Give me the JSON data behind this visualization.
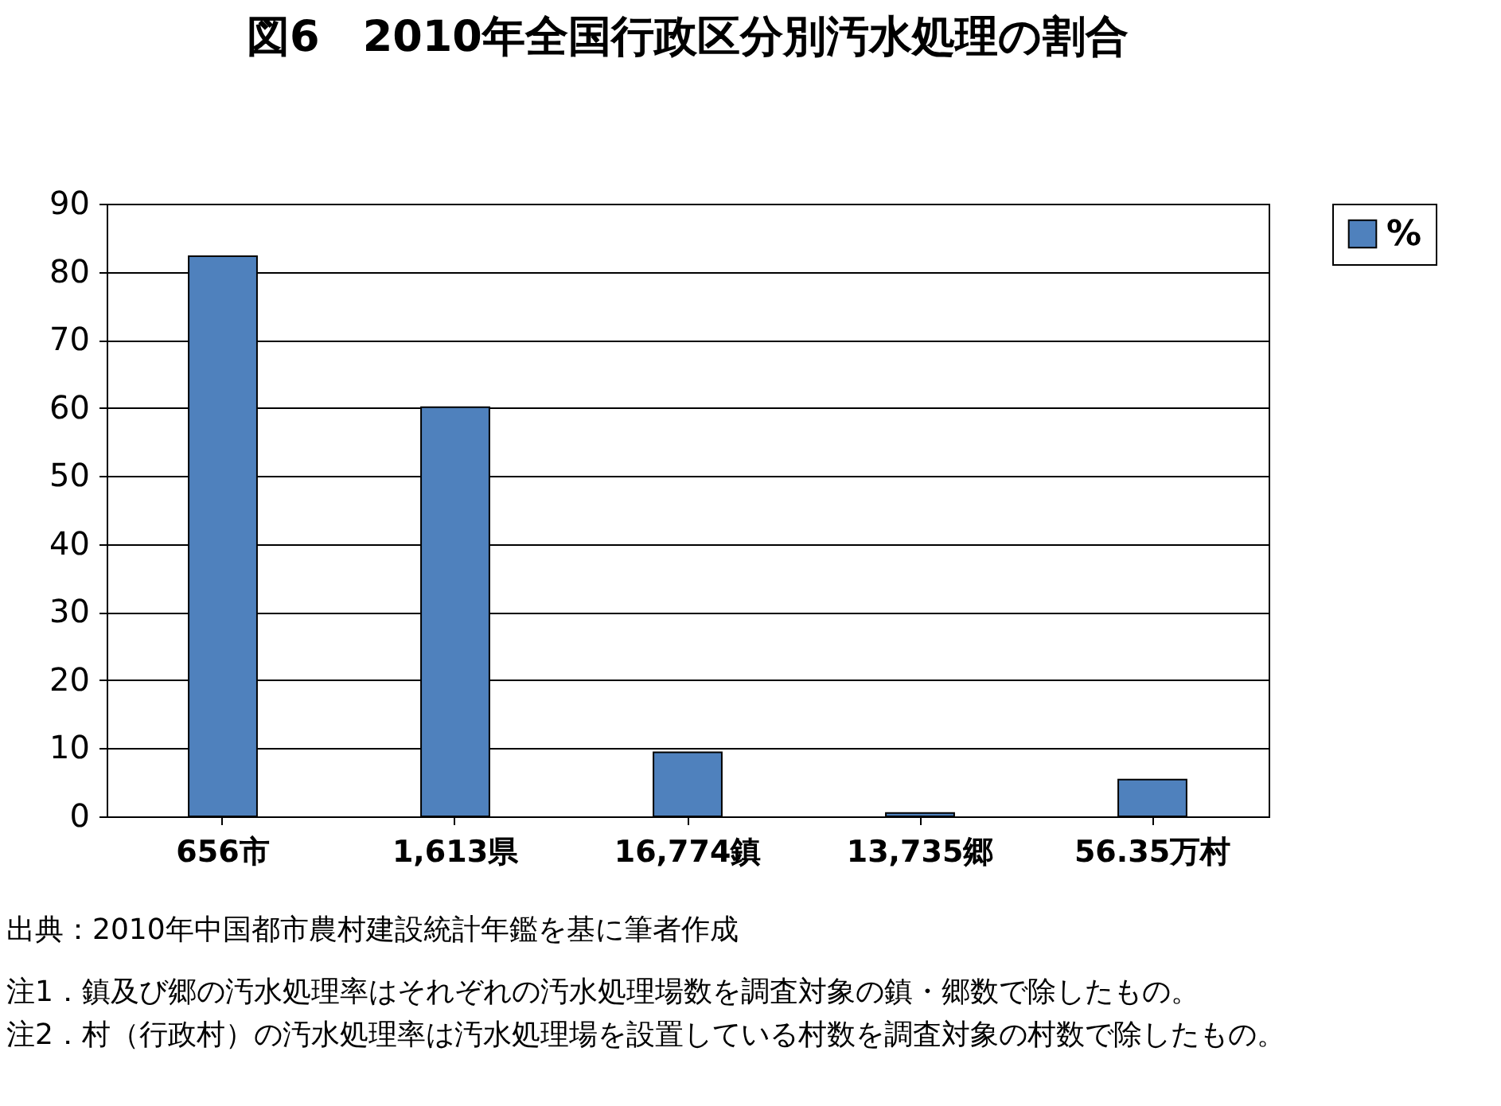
{
  "chart_data": {
    "type": "bar",
    "title": "図6　2010年全国行政区分別汚水処理の割合",
    "categories": [
      "656市",
      "1,613県",
      "16,774鎮",
      "13,735郷",
      "56.35万村"
    ],
    "series": [
      {
        "name": "%",
        "color": "#4f81bd",
        "values": [
          82.3,
          60.1,
          9.4,
          0.5,
          5.4
        ]
      }
    ],
    "ylim": [
      0,
      90
    ],
    "yticks": [
      0,
      10,
      20,
      30,
      40,
      50,
      60,
      70,
      80,
      90
    ],
    "grid": "y",
    "legend": "right",
    "annotations": [
      "出典：2010年中国都市農村建設統計年鑑を基に筆者作成",
      "注1．鎮及び郷の汚水処理率はそれぞれの汚水処理場数を調査対象の鎮・郷数で除したもの。",
      "注2．村（行政村）の汚水処理率は汚水処理場を設置している村数を調査対象の村数で除したもの。"
    ]
  }
}
